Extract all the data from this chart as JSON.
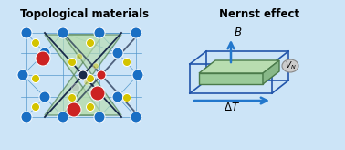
{
  "bg_color": "#cce4f7",
  "border_color": "#4a90d9",
  "title_left": "Topological materials",
  "title_right": "Nernst effect",
  "title_fontsize": 8.5,
  "title_fontweight": "bold",
  "blue_atom_color": "#1a6fc4",
  "yellow_atom_color": "#d4c400",
  "red_atom_color": "#cc2222",
  "dark_atom_color": "#1a2a4a",
  "cone_fill_color": "#b8ddb0",
  "cone_edge_color": "#4a7a4a",
  "plate_top_color": "#b8ddb0",
  "plate_front_color": "#9aca9a",
  "plate_right_color": "#88b888",
  "plate_edge_color": "#4a7a4a",
  "arrow_color": "#2277cc",
  "vn_bubble_color": "#cccccc",
  "grid_color": "#5599cc",
  "loop_color": "#2255aa"
}
